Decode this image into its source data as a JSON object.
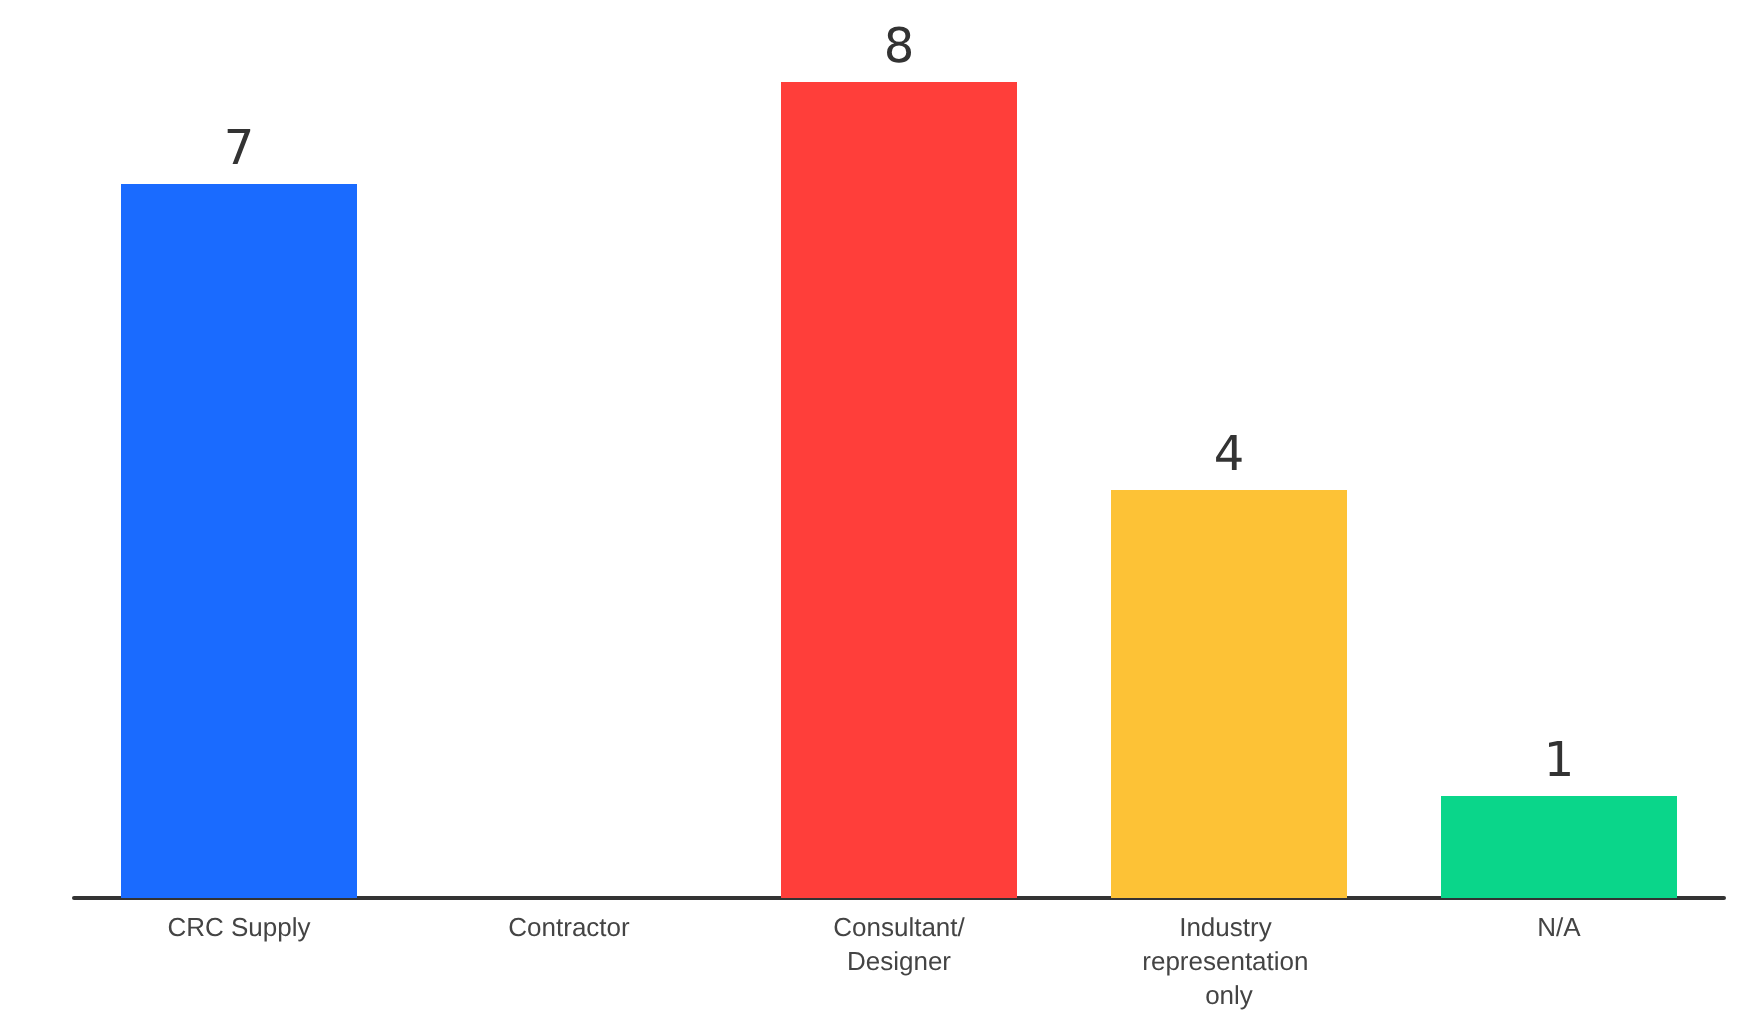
{
  "chart_data": {
    "type": "bar",
    "categories": [
      "CRC Supply",
      "Contractor",
      "Consultant/Designer",
      "Industry representation only",
      "N/A"
    ],
    "values": [
      7,
      0,
      8,
      4,
      1
    ],
    "colors": [
      "#1a6bff",
      "#1a6bff",
      "#ff3e3a",
      "#fdc236",
      "#0ad68a"
    ],
    "value_labels": [
      "7",
      null,
      "8",
      "4",
      "1"
    ]
  }
}
